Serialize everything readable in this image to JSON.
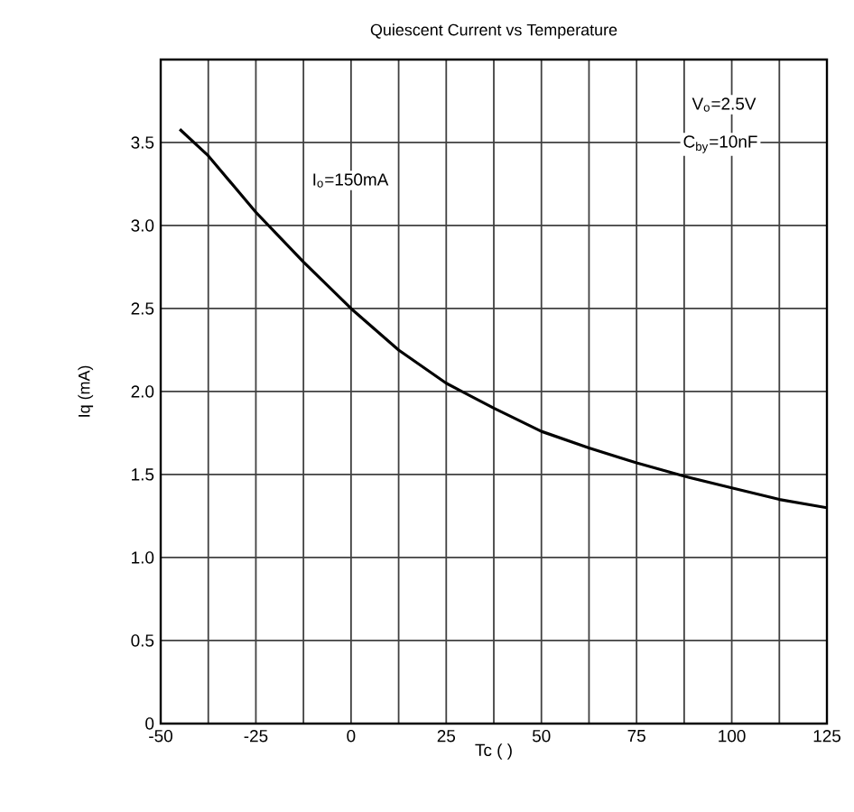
{
  "chart_data": {
    "type": "line",
    "title": "Quiescent Current vs Temperature",
    "xlabel": "Tc (   )",
    "ylabel": "Iq (mA)",
    "x": [
      -45,
      -37.5,
      -25,
      -12.5,
      0,
      12.5,
      25,
      37.5,
      50,
      62.5,
      75,
      87.5,
      100,
      112.5,
      125
    ],
    "series": [
      {
        "color": "#000000",
        "values": [
          3.58,
          3.42,
          3.08,
          2.78,
          2.5,
          2.25,
          2.05,
          1.9,
          1.76,
          1.66,
          1.57,
          1.49,
          1.42,
          1.35,
          1.3
        ]
      }
    ],
    "xlim": [
      -50,
      125
    ],
    "xticks": [
      -50,
      {
        "value": -37.5,
        "label": null
      },
      -25,
      {
        "value": -12.5,
        "label": null
      },
      0,
      {
        "value": 12.5,
        "label": null
      },
      25,
      {
        "value": 37.5,
        "label": null
      },
      50,
      {
        "value": 62.5,
        "label": null
      },
      75,
      {
        "value": 87.5,
        "label": null
      },
      100,
      {
        "value": 112.5,
        "label": null
      },
      125
    ],
    "ylim": [
      0,
      4
    ],
    "yticks": [
      0,
      0.5,
      {
        "value": 1,
        "label": "1.0"
      },
      1.5,
      {
        "value": 2,
        "label": "2.0"
      },
      2.5,
      {
        "value": 3,
        "label": "3.0"
      },
      3.5
    ],
    "grid": true,
    "marker": "none",
    "line_style": "solid",
    "annotations": [
      "I$_{o}$=150mA",
      "V$_{o}$=2.5V",
      "C$_{by}$=10nF"
    ]
  }
}
